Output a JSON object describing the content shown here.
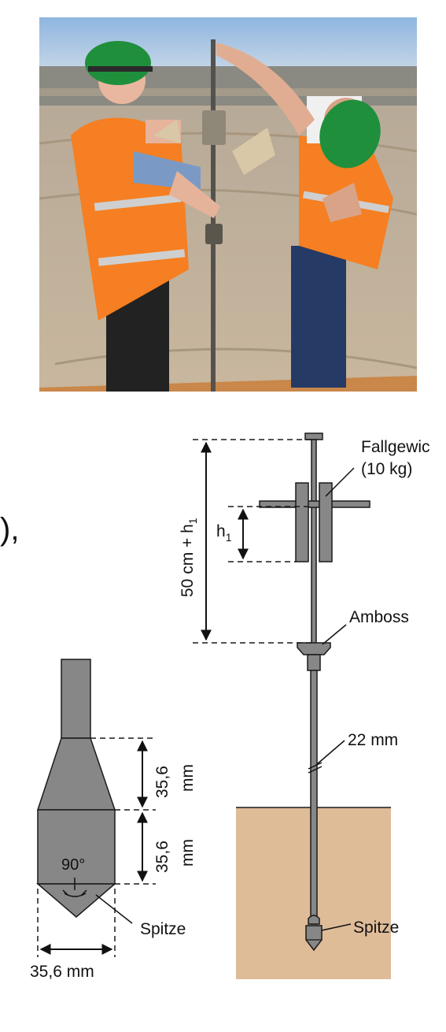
{
  "photo": {
    "subject": "two workers in orange hi-vis vests and green hard hats operating a dynamic probing rod in an open-pit mine"
  },
  "stray_text": "),",
  "rig_diagram": {
    "weight_label_line1": "Fallgewic",
    "weight_label_line2": "(10 kg)",
    "h1_label": "h",
    "h1_sub": "1",
    "total_label": "50 cm + h",
    "total_sub": "1",
    "anvil_label": "Amboss",
    "rod_label": "22 mm",
    "tip_label": "Spitze"
  },
  "tip_detail": {
    "upper_dim_value": "35,6",
    "upper_dim_unit": "mm",
    "lower_dim_value": "35,6",
    "lower_dim_unit": "mm",
    "angle_label": "90°",
    "tip_label": "Spitze",
    "width_label": "35,6 mm"
  },
  "colors": {
    "steel": "#878787",
    "outline": "#1a1a1a",
    "soil": "#dfbc98",
    "vest": "#f57f22",
    "helmet": "#1f8f3c"
  }
}
